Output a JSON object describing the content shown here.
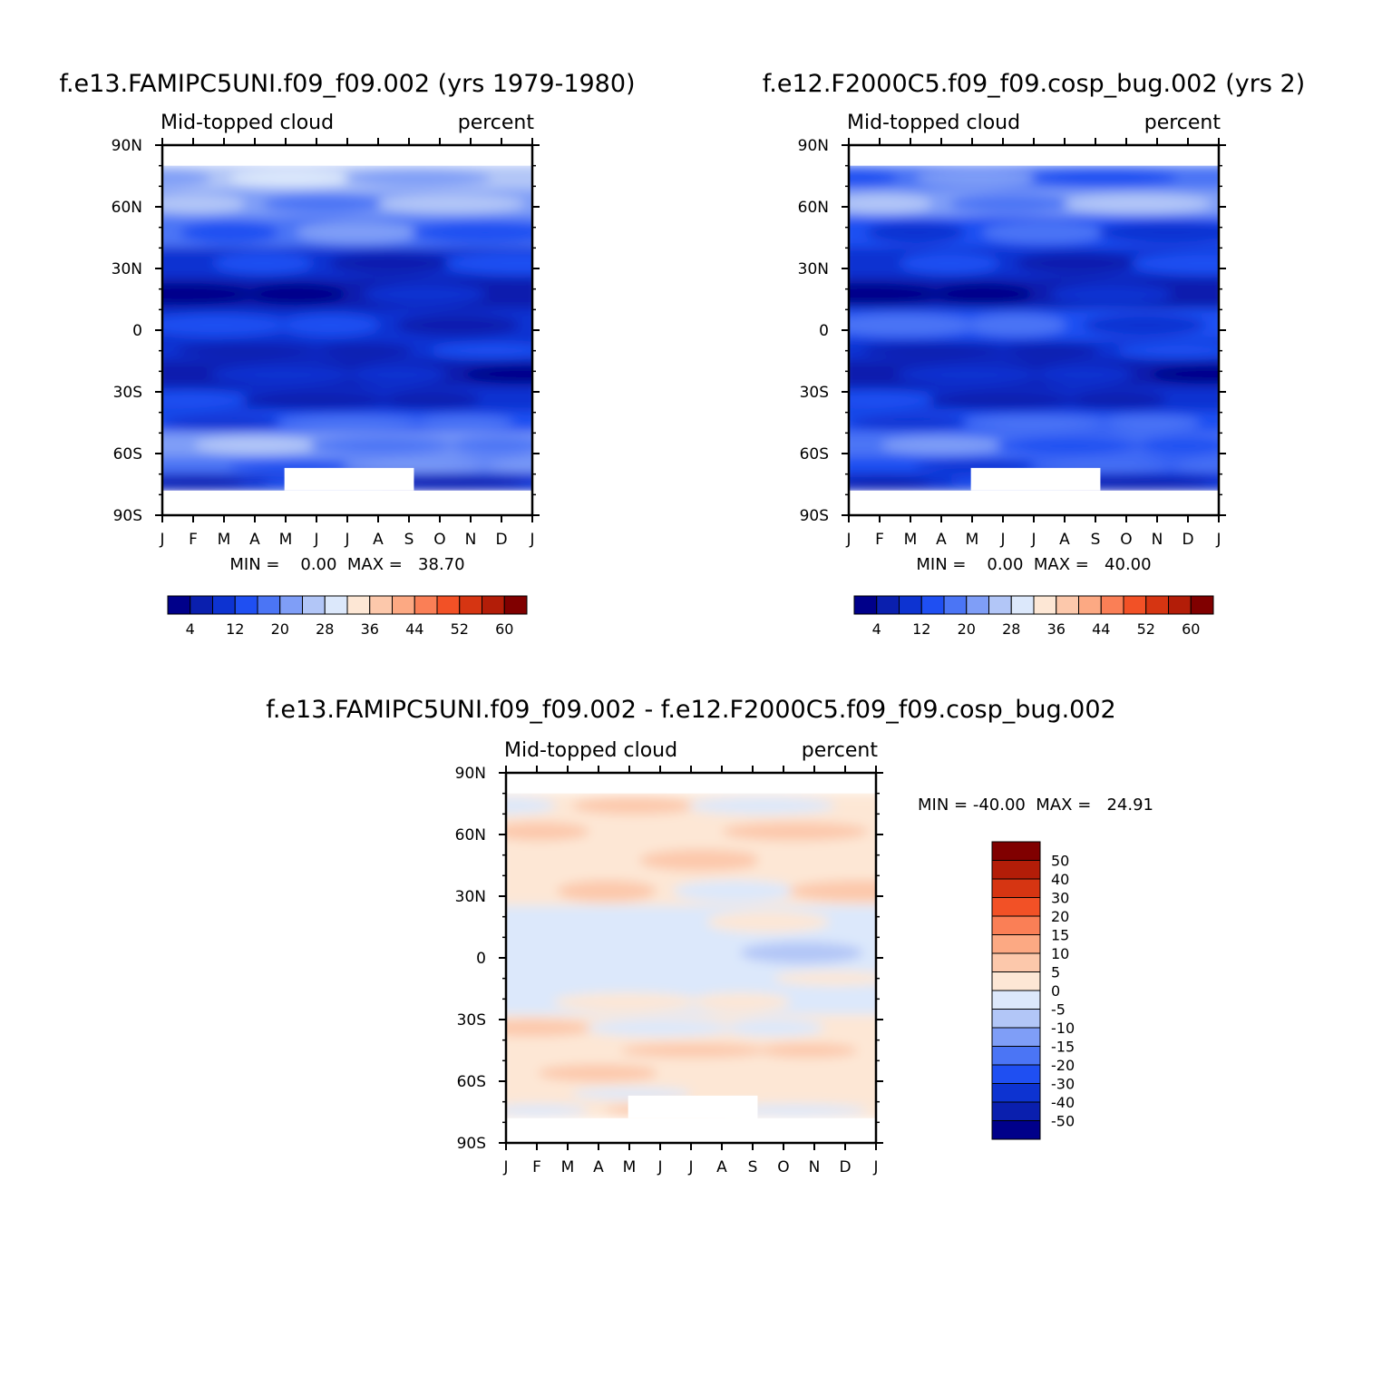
{
  "chart_data": [
    {
      "type": "heatmap",
      "title": "f.e13.FAMIPC5UNI.f09_f09.002 (yrs 1979-1980)",
      "left_label": "Mid-topped cloud",
      "right_label": "percent",
      "x_ticks": [
        "J",
        "F",
        "M",
        "A",
        "M",
        "J",
        "J",
        "A",
        "S",
        "O",
        "N",
        "D",
        "J"
      ],
      "y_ticks": [
        "90N",
        "60N",
        "30N",
        "0",
        "30S",
        "60S",
        "90S"
      ],
      "ylim": [
        -90,
        90
      ],
      "stats": "MIN =    0.00  MAX =   38.70",
      "colorbar": {
        "orientation": "horizontal",
        "levels": [
          "4",
          "12",
          "20",
          "28",
          "36",
          "44",
          "52",
          "60"
        ],
        "colors": [
          "#00008a",
          "#0a1fae",
          "#0d33d1",
          "#1f4ff2",
          "#4b75f5",
          "#7f9ef7",
          "#b2c6f7",
          "#dce8fb",
          "#fde7d5",
          "#fcc8ab",
          "#fca983",
          "#fa7f56",
          "#f25126",
          "#d63512",
          "#b31d08",
          "#800000"
        ]
      },
      "bands": [
        {
          "lat_from": 68,
          "lat_to": 80,
          "mean": 24
        },
        {
          "lat_from": 55,
          "lat_to": 68,
          "mean": 22
        },
        {
          "lat_from": 40,
          "lat_to": 55,
          "mean": 16
        },
        {
          "lat_from": 25,
          "lat_to": 40,
          "mean": 9
        },
        {
          "lat_from": 10,
          "lat_to": 25,
          "mean": 5
        },
        {
          "lat_from": -5,
          "lat_to": 10,
          "mean": 11
        },
        {
          "lat_from": -15,
          "lat_to": -5,
          "mean": 9
        },
        {
          "lat_from": -28,
          "lat_to": -15,
          "mean": 5
        },
        {
          "lat_from": -40,
          "lat_to": -28,
          "mean": 9
        },
        {
          "lat_from": -50,
          "lat_to": -40,
          "mean": 15
        },
        {
          "lat_from": -62,
          "lat_to": -50,
          "mean": 23
        },
        {
          "lat_from": -70,
          "lat_to": -62,
          "mean": 17
        },
        {
          "lat_from": -78,
          "lat_to": -70,
          "mean": 10
        }
      ]
    },
    {
      "type": "heatmap",
      "title": "f.e12.F2000C5.f09_f09.cosp_bug.002 (yrs 2)",
      "left_label": "Mid-topped cloud",
      "right_label": "percent",
      "x_ticks": [
        "J",
        "F",
        "M",
        "A",
        "M",
        "J",
        "J",
        "A",
        "S",
        "O",
        "N",
        "D",
        "J"
      ],
      "y_ticks": [
        "90N",
        "60N",
        "30N",
        "0",
        "30S",
        "60S",
        "90S"
      ],
      "ylim": [
        -90,
        90
      ],
      "stats": "MIN =    0.00  MAX =   40.00",
      "colorbar": {
        "orientation": "horizontal",
        "levels": [
          "4",
          "12",
          "20",
          "28",
          "36",
          "44",
          "52",
          "60"
        ],
        "colors": [
          "#00008a",
          "#0a1fae",
          "#0d33d1",
          "#1f4ff2",
          "#4b75f5",
          "#7f9ef7",
          "#b2c6f7",
          "#dce8fb",
          "#fde7d5",
          "#fcc8ab",
          "#fca983",
          "#fa7f56",
          "#f25126",
          "#d63512",
          "#b31d08",
          "#800000"
        ]
      },
      "bands": [
        {
          "lat_from": 68,
          "lat_to": 80,
          "mean": 18
        },
        {
          "lat_from": 55,
          "lat_to": 68,
          "mean": 22
        },
        {
          "lat_from": 40,
          "lat_to": 55,
          "mean": 14
        },
        {
          "lat_from": 25,
          "lat_to": 40,
          "mean": 9
        },
        {
          "lat_from": 10,
          "lat_to": 25,
          "mean": 6
        },
        {
          "lat_from": -5,
          "lat_to": 10,
          "mean": 15
        },
        {
          "lat_from": -15,
          "lat_to": -5,
          "mean": 11
        },
        {
          "lat_from": -28,
          "lat_to": -15,
          "mean": 7
        },
        {
          "lat_from": -40,
          "lat_to": -28,
          "mean": 9
        },
        {
          "lat_from": -50,
          "lat_to": -40,
          "mean": 12
        },
        {
          "lat_from": -62,
          "lat_to": -50,
          "mean": 18
        },
        {
          "lat_from": -70,
          "lat_to": -62,
          "mean": 14
        },
        {
          "lat_from": -78,
          "lat_to": -70,
          "mean": 9
        }
      ]
    },
    {
      "type": "heatmap",
      "title": "f.e13.FAMIPC5UNI.f09_f09.002 - f.e12.F2000C5.f09_f09.cosp_bug.002",
      "left_label": "Mid-topped cloud",
      "right_label": "percent",
      "x_ticks": [
        "J",
        "F",
        "M",
        "A",
        "M",
        "J",
        "J",
        "A",
        "S",
        "O",
        "N",
        "D",
        "J"
      ],
      "y_ticks": [
        "90N",
        "60N",
        "30N",
        "0",
        "30S",
        "60S",
        "90S"
      ],
      "ylim": [
        -90,
        90
      ],
      "stats": "MIN = -40.00  MAX =   24.91",
      "colorbar": {
        "orientation": "vertical",
        "levels": [
          "50",
          "40",
          "30",
          "20",
          "15",
          "10",
          "5",
          "0",
          "-5",
          "-10",
          "-15",
          "-20",
          "-30",
          "-40",
          "-50"
        ],
        "colors": [
          "#800000",
          "#b31d08",
          "#d63512",
          "#f25126",
          "#fa7f56",
          "#fca983",
          "#fcc8ab",
          "#fde7d5",
          "#dce8fb",
          "#b2c6f7",
          "#7f9ef7",
          "#4b75f5",
          "#1f4ff2",
          "#0d33d1",
          "#0a1fae",
          "#00008a"
        ]
      },
      "bands": [
        {
          "lat_from": 68,
          "lat_to": 80,
          "mean": 2
        },
        {
          "lat_from": 55,
          "lat_to": 68,
          "mean": 3
        },
        {
          "lat_from": 40,
          "lat_to": 55,
          "mean": 4
        },
        {
          "lat_from": 25,
          "lat_to": 40,
          "mean": 2
        },
        {
          "lat_from": 10,
          "lat_to": 25,
          "mean": -2
        },
        {
          "lat_from": -5,
          "lat_to": 10,
          "mean": -4
        },
        {
          "lat_from": -15,
          "lat_to": -5,
          "mean": -2
        },
        {
          "lat_from": -28,
          "lat_to": -15,
          "mean": -1
        },
        {
          "lat_from": -40,
          "lat_to": -28,
          "mean": 2
        },
        {
          "lat_from": -50,
          "lat_to": -40,
          "mean": 4
        },
        {
          "lat_from": -62,
          "lat_to": -50,
          "mean": 3
        },
        {
          "lat_from": -70,
          "lat_to": -62,
          "mean": 1
        },
        {
          "lat_from": -78,
          "lat_to": -70,
          "mean": 2
        }
      ]
    }
  ]
}
